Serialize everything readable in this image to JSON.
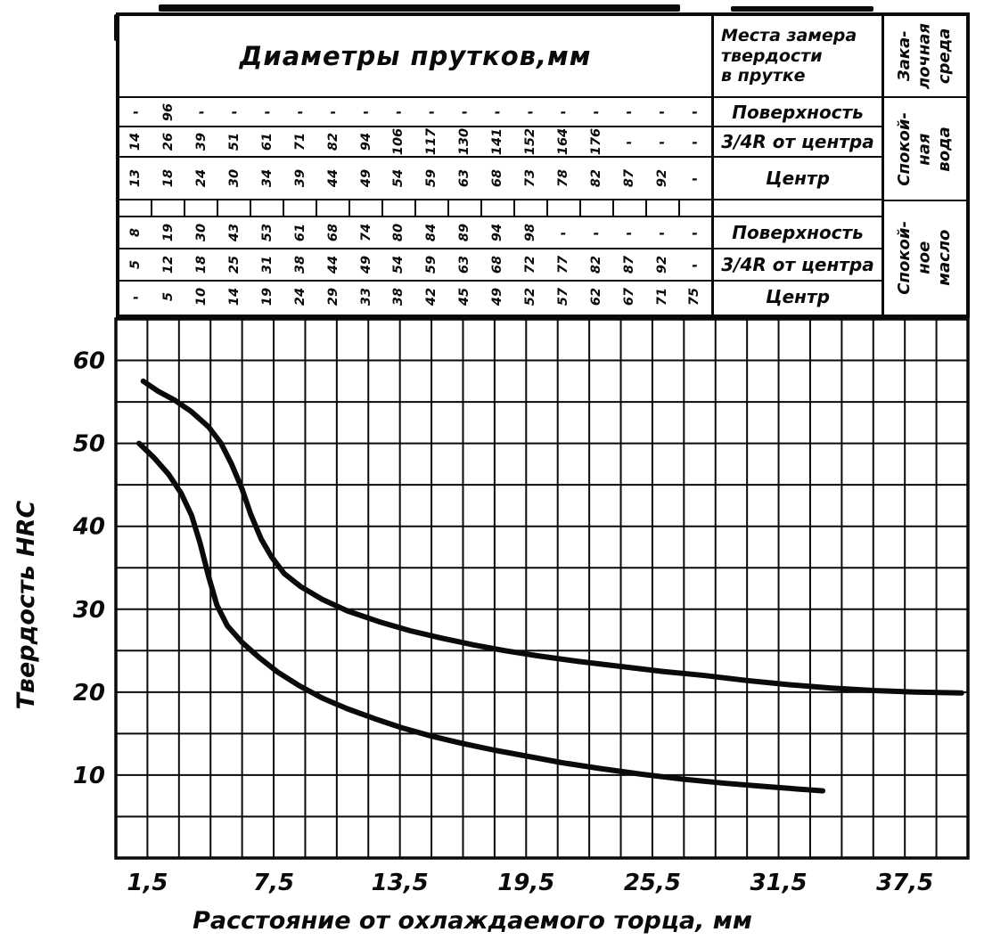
{
  "table": {
    "title": "Диаметры прутков,мм",
    "measure_header_lines": [
      "Места замера",
      "твердости",
      "в прутке"
    ],
    "quench_header_lines": [
      "Зака-",
      "лочная",
      "среда"
    ],
    "columns": 18,
    "blocks": [
      {
        "id": "water",
        "quench_lines": [
          "Спокой-",
          "ная",
          "вода"
        ],
        "rows": [
          {
            "label": "Поверхность",
            "values": [
              "-",
              "96",
              "-",
              "-",
              "-",
              "-",
              "-",
              "-",
              "-",
              "-",
              "-",
              "-",
              "-",
              "-",
              "-",
              "-",
              "-",
              "-"
            ]
          },
          {
            "label": "3/4R от центра",
            "values": [
              "14",
              "26",
              "39",
              "51",
              "61",
              "71",
              "82",
              "94",
              "106",
              "117",
              "130",
              "141",
              "152",
              "164",
              "176",
              "-",
              "-",
              "-"
            ]
          },
          {
            "label": "Центр",
            "values": [
              "13",
              "18",
              "24",
              "30",
              "34",
              "39",
              "44",
              "49",
              "54",
              "59",
              "63",
              "68",
              "73",
              "78",
              "82",
              "87",
              "92",
              "-"
            ]
          }
        ]
      },
      {
        "id": "oil",
        "quench_lines": [
          "Спокой-",
          "ное",
          "масло"
        ],
        "rows": [
          {
            "label": "Поверхность",
            "values": [
              "8",
              "19",
              "30",
              "43",
              "53",
              "61",
              "68",
              "74",
              "80",
              "84",
              "89",
              "94",
              "98",
              "-",
              "-",
              "-",
              "-",
              "-"
            ]
          },
          {
            "label": "3/4R от центра",
            "values": [
              "5",
              "12",
              "18",
              "25",
              "31",
              "38",
              "44",
              "49",
              "54",
              "59",
              "63",
              "68",
              "72",
              "77",
              "82",
              "87",
              "92",
              "-"
            ]
          },
          {
            "label": "Центр",
            "values": [
              "-",
              "5",
              "10",
              "14",
              "19",
              "24",
              "29",
              "33",
              "38",
              "42",
              "45",
              "49",
              "52",
              "57",
              "62",
              "67",
              "71",
              "75"
            ]
          }
        ]
      }
    ]
  },
  "chart_data": {
    "type": "line",
    "title": "",
    "xlabel": "Расстояние от охлаждаемого торца, мм",
    "ylabel": "Твердость HRC",
    "x_tick_labels": [
      "1,5",
      "7,5",
      "13,5",
      "19,5",
      "25,5",
      "31,5",
      "37,5"
    ],
    "x_tick_values": [
      1.5,
      7.5,
      13.5,
      19.5,
      25.5,
      31.5,
      37.5
    ],
    "y_tick_values": [
      10,
      20,
      30,
      40,
      50,
      60
    ],
    "xlim": [
      0,
      40.5
    ],
    "ylim": [
      0,
      65
    ],
    "x_grid_step": 1.5,
    "y_grid_step": 5,
    "grid": true,
    "legend": "none",
    "ink_color": "#0a0a0a",
    "series": [
      {
        "name": "water-quench-curve",
        "points": [
          [
            1.3,
            57.5
          ],
          [
            2.0,
            56.3
          ],
          [
            2.8,
            55.2
          ],
          [
            3.6,
            53.8
          ],
          [
            4.4,
            52.0
          ],
          [
            5.0,
            50.0
          ],
          [
            5.5,
            47.5
          ],
          [
            6.0,
            44.5
          ],
          [
            6.4,
            41.5
          ],
          [
            6.9,
            38.5
          ],
          [
            7.4,
            36.3
          ],
          [
            8.0,
            34.3
          ],
          [
            8.8,
            32.7
          ],
          [
            9.8,
            31.2
          ],
          [
            11.0,
            29.8
          ],
          [
            12.5,
            28.5
          ],
          [
            14.0,
            27.4
          ],
          [
            15.5,
            26.5
          ],
          [
            17.0,
            25.7
          ],
          [
            18.5,
            25.0
          ],
          [
            20.0,
            24.4
          ],
          [
            22.0,
            23.7
          ],
          [
            24.0,
            23.1
          ],
          [
            26.0,
            22.5
          ],
          [
            28.0,
            22.0
          ],
          [
            30.0,
            21.4
          ],
          [
            32.0,
            20.9
          ],
          [
            34.0,
            20.5
          ],
          [
            36.0,
            20.2
          ],
          [
            38.0,
            20.0
          ],
          [
            40.2,
            19.9
          ]
        ]
      },
      {
        "name": "oil-quench-curve",
        "points": [
          [
            1.1,
            50.0
          ],
          [
            1.8,
            48.3
          ],
          [
            2.5,
            46.3
          ],
          [
            3.1,
            44.0
          ],
          [
            3.6,
            41.3
          ],
          [
            4.0,
            38.0
          ],
          [
            4.4,
            34.0
          ],
          [
            4.8,
            30.5
          ],
          [
            5.3,
            28.0
          ],
          [
            6.0,
            26.0
          ],
          [
            6.8,
            24.2
          ],
          [
            7.7,
            22.4
          ],
          [
            8.7,
            20.8
          ],
          [
            9.8,
            19.3
          ],
          [
            11.0,
            18.0
          ],
          [
            12.3,
            16.8
          ],
          [
            13.6,
            15.7
          ],
          [
            15.0,
            14.7
          ],
          [
            16.5,
            13.8
          ],
          [
            18.0,
            13.0
          ],
          [
            19.5,
            12.3
          ],
          [
            21.2,
            11.5
          ],
          [
            23.0,
            10.8
          ],
          [
            25.0,
            10.1
          ],
          [
            27.0,
            9.5
          ],
          [
            29.0,
            9.0
          ],
          [
            31.0,
            8.6
          ],
          [
            32.5,
            8.3
          ],
          [
            33.6,
            8.1
          ]
        ]
      }
    ]
  }
}
